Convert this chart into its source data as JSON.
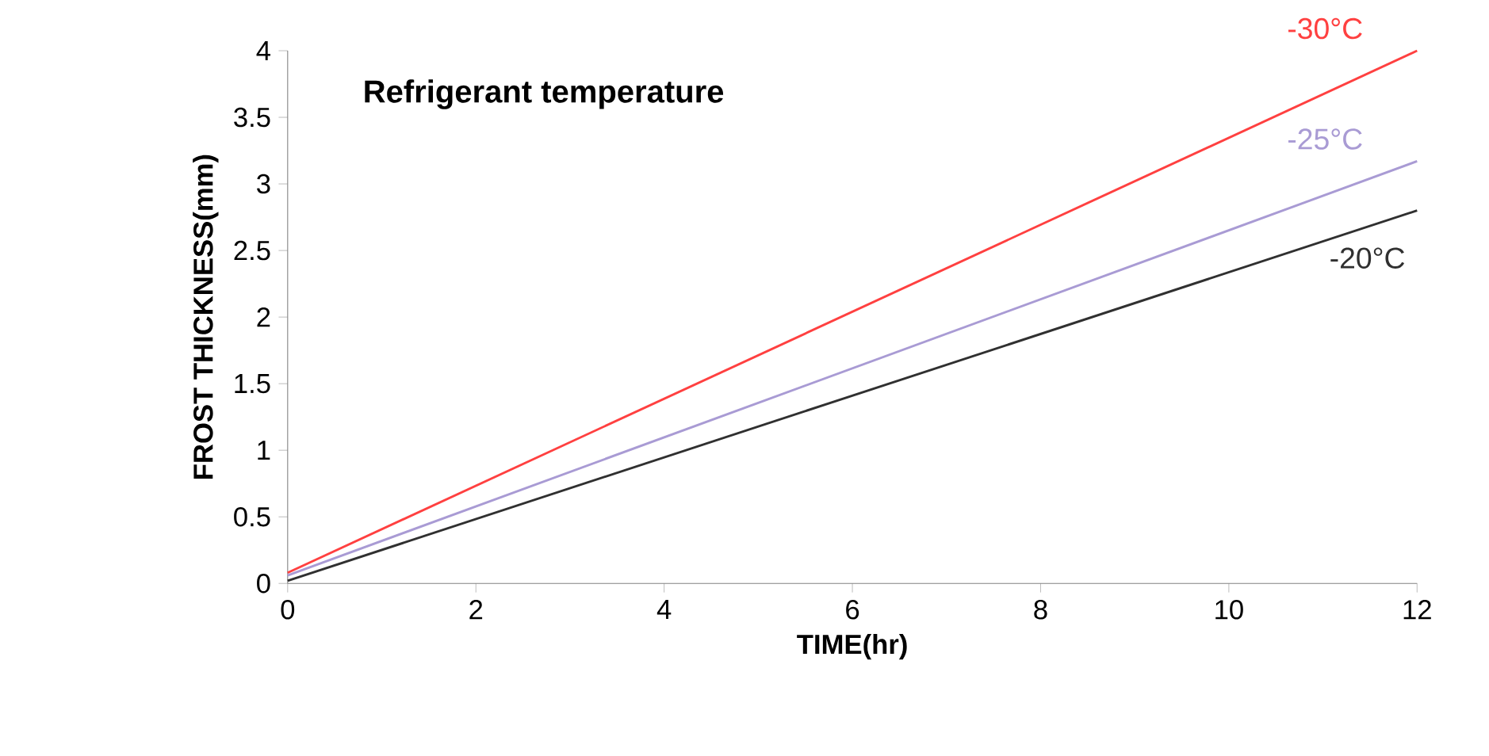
{
  "chart_data": {
    "type": "line",
    "xlabel": "TIME(hr)",
    "ylabel": "FROST THICKNESS(mm)",
    "annotations": [
      "Refrigerant temperature"
    ],
    "x": [
      0,
      12
    ],
    "series": [
      {
        "name": "-30°C",
        "color": "#ff4040",
        "values": [
          0.08,
          4.0
        ]
      },
      {
        "name": "-25°C",
        "color": "#a99bd4",
        "values": [
          0.06,
          3.17
        ]
      },
      {
        "name": "-20°C",
        "color": "#303030",
        "values": [
          0.02,
          2.8
        ]
      }
    ],
    "xlim": [
      0,
      12
    ],
    "ylim": [
      0,
      4
    ],
    "xticks": [
      0,
      2,
      4,
      6,
      8,
      10,
      12
    ],
    "yticks": [
      0,
      0.5,
      1,
      1.5,
      2,
      2.5,
      3,
      3.5,
      4
    ],
    "grid": false,
    "legend": false,
    "marker": "none",
    "line_style": "solid"
  }
}
